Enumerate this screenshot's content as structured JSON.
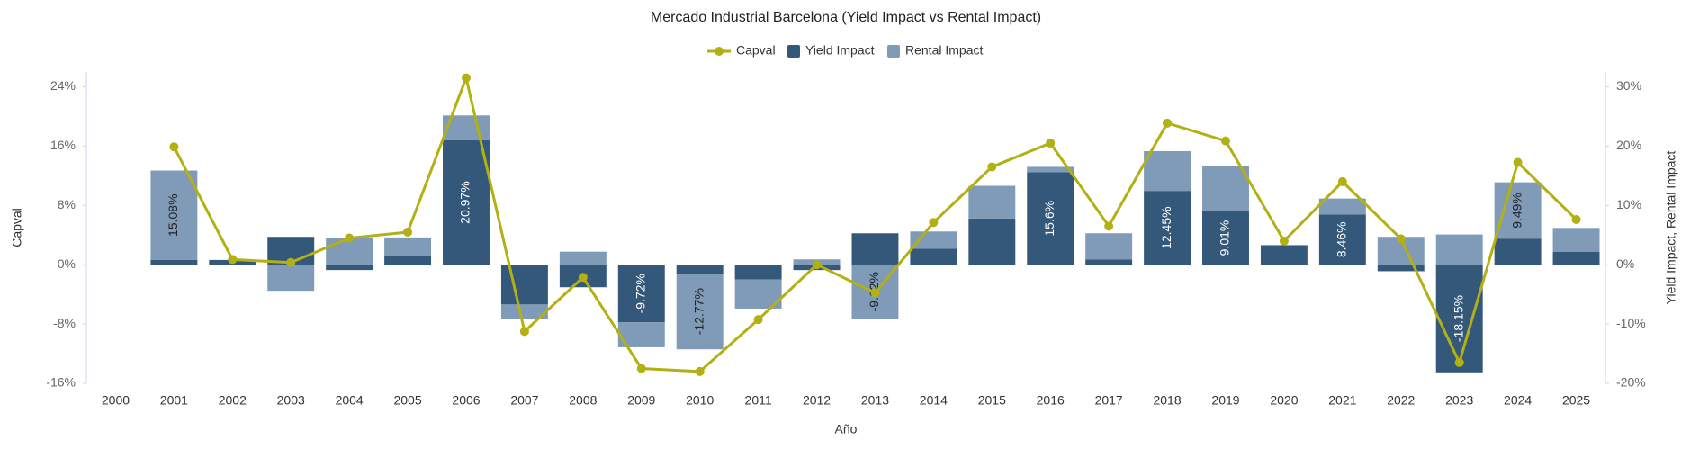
{
  "chart_data": {
    "type": "bar",
    "title": "Mercado Industrial Barcelona (Yield Impact vs Rental Impact)",
    "x_label": "Año",
    "y_label": "Capval",
    "y2_label": "Yield Impact, Rental Impact",
    "categories": [
      "2000",
      "2001",
      "2002",
      "2003",
      "2004",
      "2005",
      "2006",
      "2007",
      "2008",
      "2009",
      "2010",
      "2011",
      "2012",
      "2013",
      "2014",
      "2015",
      "2016",
      "2017",
      "2018",
      "2019",
      "2020",
      "2021",
      "2022",
      "2023",
      "2024",
      "2025"
    ],
    "ylim": [
      -16,
      26
    ],
    "yticks": [
      {
        "value": -16,
        "label": "-16%"
      },
      {
        "value": -8,
        "label": "-8%"
      },
      {
        "value": 0,
        "label": "0%"
      },
      {
        "value": 8,
        "label": "8%"
      },
      {
        "value": 16,
        "label": "16%"
      },
      {
        "value": 24,
        "label": "24%"
      }
    ],
    "y2lim": [
      -20,
      32.5
    ],
    "y2ticks": [
      {
        "value": -20,
        "label": "-20%"
      },
      {
        "value": -10,
        "label": "-10%"
      },
      {
        "value": 0,
        "label": "0%"
      },
      {
        "value": 10,
        "label": "10%"
      },
      {
        "value": 20,
        "label": "20%"
      },
      {
        "value": 30,
        "label": "30%"
      }
    ],
    "legend": "top",
    "series": [
      {
        "name": "Capval",
        "type": "line",
        "axis": "y",
        "color": "#b3b014",
        "values": [
          null,
          15.9,
          0.7,
          0.3,
          3.6,
          4.4,
          25.2,
          -9.0,
          -1.7,
          -14.0,
          -14.4,
          -7.4,
          0,
          -3.8,
          5.7,
          13.2,
          16.4,
          5.2,
          19.1,
          16.7,
          3.2,
          11.2,
          3.5,
          -13.2,
          13.8,
          6.1
        ]
      },
      {
        "name": "Yield Impact",
        "type": "bar",
        "axis": "y2",
        "color": "#34587a",
        "values": [
          null,
          0.8,
          0.8,
          4.7,
          -0.9,
          1.5,
          20.97,
          -6.7,
          -3.8,
          -9.72,
          -1.5,
          -2.5,
          -0.9,
          5.3,
          2.7,
          7.8,
          15.6,
          0.9,
          12.45,
          9.01,
          3.3,
          8.46,
          -1.1,
          -18.15,
          4.4,
          2.2
        ],
        "value_labels": [
          null,
          null,
          null,
          null,
          null,
          null,
          "20.97%",
          null,
          null,
          "-9.72%",
          null,
          null,
          null,
          null,
          null,
          null,
          "15.6%",
          null,
          "12.45%",
          "9.01%",
          null,
          "8.46%",
          null,
          "-18.15%",
          null,
          null
        ]
      },
      {
        "name": "Rental Impact",
        "type": "bar",
        "axis": "y2",
        "color": "#7f9bb8",
        "values": [
          null,
          15.08,
          0,
          -4.4,
          4.5,
          3.1,
          4.2,
          -2.4,
          2.2,
          -4.2,
          -12.77,
          -4.9,
          0.9,
          -9.12,
          2.9,
          5.5,
          0.9,
          4.4,
          6.7,
          7.6,
          0,
          2.7,
          4.7,
          5.1,
          9.49,
          4.0
        ],
        "value_labels": [
          null,
          "15.08%",
          null,
          null,
          null,
          null,
          null,
          null,
          null,
          null,
          "-12.77%",
          null,
          null,
          "-9.12%",
          null,
          null,
          null,
          null,
          null,
          null,
          null,
          null,
          null,
          null,
          "9.49%",
          null
        ]
      }
    ]
  }
}
